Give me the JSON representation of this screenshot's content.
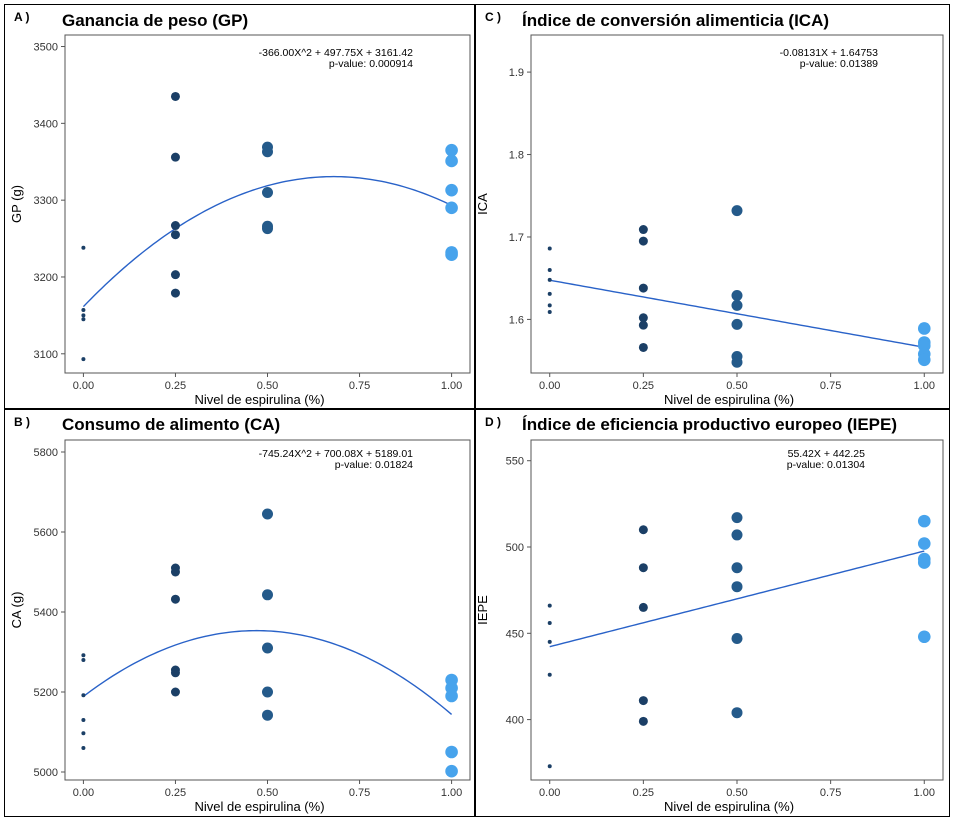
{
  "colors": {
    "fit_line": "#2962c8",
    "dark_points": "#1b3f66",
    "mid_points": "#245a8a",
    "light_points": "#47a3ec",
    "axis": "#555555",
    "text": "#000000"
  },
  "chart_data": [
    {
      "id": "A",
      "panel_label": "A )",
      "type": "scatter",
      "title": "Ganancia de peso (GP)",
      "xlabel": "Nivel de espirulina (%)",
      "ylabel": "GP (g)",
      "xlim": [
        -0.05,
        1.05
      ],
      "ylim": [
        3075,
        3515
      ],
      "xticks": [
        0,
        0.25,
        0.5,
        0.75,
        1
      ],
      "xtick_labels": [
        "0.00",
        "0.25",
        "0.50",
        "0.75",
        "1.00"
      ],
      "yticks": [
        3100,
        3200,
        3300,
        3400,
        3500
      ],
      "ytick_labels": [
        "3100",
        "3200",
        "3300",
        "3400",
        "3500"
      ],
      "equation": "-366.00X^2 + 497.75X + 3161.42",
      "p_value": "p-value: 0.000914",
      "fit": {
        "type": "quadratic",
        "coefficients": [
          3161.42,
          497.75,
          -366.0
        ]
      },
      "points": [
        {
          "x": 0,
          "y": [
            3238,
            3157,
            3150,
            3145,
            3093
          ]
        },
        {
          "x": 0.25,
          "y": [
            3435,
            3356,
            3267,
            3255,
            3203,
            3179
          ]
        },
        {
          "x": 0.5,
          "y": [
            3369,
            3363,
            3310,
            3266,
            3263
          ]
        },
        {
          "x": 1,
          "y": [
            3365,
            3351,
            3313,
            3290,
            3232,
            3229
          ]
        }
      ]
    },
    {
      "id": "C",
      "panel_label": "C )",
      "type": "scatter",
      "title": "Índice de conversión alimenticia (ICA)",
      "xlabel": "Nivel de espirulina (%)",
      "ylabel": "ICA",
      "xlim": [
        -0.05,
        1.05
      ],
      "ylim": [
        1.535,
        1.945
      ],
      "xticks": [
        0,
        0.25,
        0.5,
        0.75,
        1
      ],
      "xtick_labels": [
        "0.00",
        "0.25",
        "0.50",
        "0.75",
        "1.00"
      ],
      "yticks": [
        1.6,
        1.7,
        1.8,
        1.9
      ],
      "ytick_labels": [
        "1.6",
        "1.7",
        "1.8",
        "1.9"
      ],
      "equation": "-0.08131X + 1.64753",
      "p_value": "p-value: 0.01389",
      "fit": {
        "type": "linear",
        "coefficients": [
          1.64753,
          -0.08131
        ]
      },
      "points": [
        {
          "x": 0,
          "y": [
            1.686,
            1.66,
            1.648,
            1.631,
            1.617,
            1.609
          ]
        },
        {
          "x": 0.25,
          "y": [
            1.709,
            1.695,
            1.638,
            1.602,
            1.593,
            1.566
          ]
        },
        {
          "x": 0.5,
          "y": [
            1.732,
            1.629,
            1.617,
            1.594,
            1.555,
            1.548
          ]
        },
        {
          "x": 1,
          "y": [
            1.589,
            1.572,
            1.568,
            1.558,
            1.551
          ]
        }
      ]
    },
    {
      "id": "B",
      "panel_label": "B )",
      "type": "scatter",
      "title": "Consumo de alimento (CA)",
      "xlabel": "Nivel de espirulina (%)",
      "ylabel": "CA (g)",
      "xlim": [
        -0.05,
        1.05
      ],
      "ylim": [
        4980,
        5830
      ],
      "xticks": [
        0,
        0.25,
        0.5,
        0.75,
        1
      ],
      "xtick_labels": [
        "0.00",
        "0.25",
        "0.50",
        "0.75",
        "1.00"
      ],
      "yticks": [
        5000,
        5200,
        5400,
        5600,
        5800
      ],
      "ytick_labels": [
        "5000",
        "5200",
        "5400",
        "5600",
        "5800"
      ],
      "equation": "-745.24X^2 + 700.08X + 5189.01",
      "p_value": "p-value: 0.01824",
      "fit": {
        "type": "quadratic",
        "coefficients": [
          5189.01,
          700.08,
          -745.24
        ]
      },
      "points": [
        {
          "x": 0,
          "y": [
            5292,
            5280,
            5192,
            5130,
            5097,
            5060
          ]
        },
        {
          "x": 0.25,
          "y": [
            5510,
            5500,
            5432,
            5255,
            5248,
            5200
          ]
        },
        {
          "x": 0.5,
          "y": [
            5645,
            5443,
            5310,
            5200,
            5142
          ]
        },
        {
          "x": 1,
          "y": [
            5230,
            5210,
            5190,
            5050,
            5002
          ]
        }
      ]
    },
    {
      "id": "D",
      "panel_label": "D )",
      "type": "scatter",
      "title": "Índice de eficiencia productivo europeo (IEPE)",
      "xlabel": "Nivel de espirulina (%)",
      "ylabel": "IEPE",
      "xlim": [
        -0.05,
        1.05
      ],
      "ylim": [
        365,
        562
      ],
      "xticks": [
        0,
        0.25,
        0.5,
        0.75,
        1
      ],
      "xtick_labels": [
        "0.00",
        "0.25",
        "0.50",
        "0.75",
        "1.00"
      ],
      "yticks": [
        400,
        450,
        500,
        550
      ],
      "ytick_labels": [
        "400",
        "450",
        "500",
        "550"
      ],
      "equation": "55.42X + 442.25",
      "p_value": "p-value: 0.01304",
      "fit": {
        "type": "linear",
        "coefficients": [
          442.25,
          55.42
        ]
      },
      "points": [
        {
          "x": 0,
          "y": [
            466,
            456,
            445,
            426,
            373
          ]
        },
        {
          "x": 0.25,
          "y": [
            510,
            488,
            465,
            411,
            399
          ]
        },
        {
          "x": 0.5,
          "y": [
            517,
            507,
            488,
            477,
            447,
            404
          ]
        },
        {
          "x": 1,
          "y": [
            515,
            502,
            493,
            491,
            448
          ]
        }
      ]
    }
  ]
}
